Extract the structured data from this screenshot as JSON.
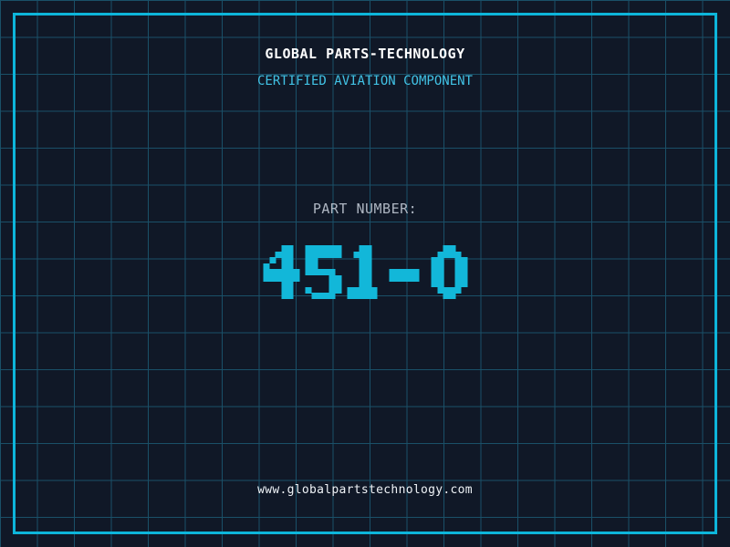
{
  "colors": {
    "bg": "#101827",
    "grid": "#1a5068",
    "accent": "#0db5da",
    "number": "#12b7d9",
    "title": "#ffffff",
    "subtitle": "#41c2e5",
    "label": "#aeb6c2",
    "url": "#eef2f6"
  },
  "header": {
    "title": "GLOBAL PARTS-TECHNOLOGY",
    "subtitle": "CERTIFIED AVIATION COMPONENT"
  },
  "part": {
    "label": "PART NUMBER:",
    "number": "451-O"
  },
  "footer": {
    "url": "www.globalpartstechnology.com"
  }
}
